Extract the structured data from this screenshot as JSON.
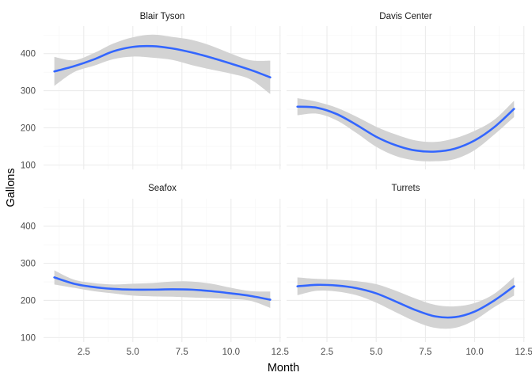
{
  "chart_data": {
    "type": "line",
    "layout": "facet-wrap 2x2",
    "xlabel": "Month",
    "ylabel": "Gallons",
    "xlim": [
      0.45,
      12.55
    ],
    "ylim": [
      88,
      474
    ],
    "x_ticks": [
      2.5,
      5.0,
      7.5,
      10.0,
      12.5
    ],
    "x_tick_labels": [
      "2.5",
      "5.0",
      "7.5",
      "10.0",
      "12.5"
    ],
    "y_ticks": [
      100,
      200,
      300,
      400
    ],
    "y_tick_labels": [
      "100",
      "200",
      "300",
      "400"
    ],
    "grid": true,
    "colors": {
      "line": "#3366FF",
      "ribbon": "#D3D3D3",
      "grid_major": "#EBEBEB",
      "grid_minor": "#F5F5F5"
    },
    "panels": [
      {
        "name": "Blair Tyson",
        "x": [
          1,
          2,
          3,
          4,
          5,
          6,
          7,
          8,
          9,
          10,
          11,
          12
        ],
        "y": [
          352,
          366,
          384,
          406,
          418,
          420,
          414,
          403,
          389,
          373,
          356,
          336
        ],
        "lower": [
          313,
          350,
          367,
          385,
          392,
          389,
          383,
          369,
          357,
          346,
          330,
          291
        ],
        "upper": [
          391,
          382,
          401,
          427,
          444,
          451,
          445,
          437,
          421,
          400,
          382,
          381
        ]
      },
      {
        "name": "Davis Center",
        "x": [
          1,
          2,
          3,
          4,
          5,
          6,
          7,
          8,
          9,
          10,
          11,
          12
        ],
        "y": [
          257,
          254,
          237,
          208,
          176,
          153,
          139,
          136,
          144,
          166,
          202,
          251
        ],
        "lower": [
          234,
          238,
          220,
          186,
          149,
          124,
          112,
          110,
          116,
          140,
          182,
          229
        ],
        "upper": [
          280,
          270,
          254,
          230,
          203,
          182,
          166,
          162,
          172,
          192,
          222,
          273
        ]
      },
      {
        "name": "Seafox",
        "x": [
          1,
          2,
          3,
          4,
          5,
          6,
          7,
          8,
          9,
          10,
          11,
          12
        ],
        "y": [
          262,
          245,
          236,
          231,
          229,
          229,
          230,
          229,
          225,
          219,
          212,
          202
        ],
        "lower": [
          243,
          234,
          225,
          219,
          213,
          211,
          210,
          208,
          206,
          204,
          199,
          180
        ],
        "upper": [
          281,
          256,
          247,
          243,
          245,
          247,
          251,
          251,
          245,
          234,
          225,
          224
        ]
      },
      {
        "name": "Turrets",
        "x": [
          1,
          2,
          3,
          4,
          5,
          6,
          7,
          8,
          9,
          10,
          11,
          12
        ],
        "y": [
          238,
          242,
          240,
          233,
          219,
          197,
          174,
          157,
          155,
          170,
          200,
          238
        ],
        "lower": [
          214,
          226,
          224,
          214,
          194,
          168,
          143,
          126,
          126,
          147,
          182,
          213
        ],
        "upper": [
          262,
          258,
          256,
          252,
          244,
          226,
          205,
          188,
          184,
          193,
          218,
          263
        ]
      }
    ]
  }
}
